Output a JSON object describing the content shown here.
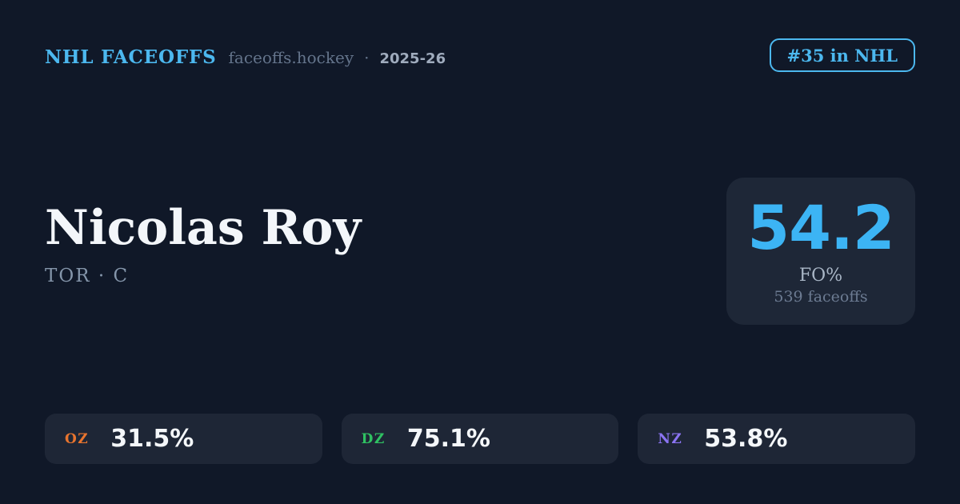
{
  "header": {
    "brand": "NHL FACEOFFS",
    "domain": "faceoffs.hockey",
    "separator": "·",
    "season": "2025-26",
    "rank_badge": "#35 in NHL"
  },
  "player": {
    "name": "Nicolas Roy",
    "team": "TOR",
    "position": "C",
    "team_line": "TOR · C"
  },
  "faceoff_card": {
    "value": "54.2",
    "label": "FO%",
    "sub": "539 faceoffs"
  },
  "zones": [
    {
      "label": "OZ",
      "value": "31.5%",
      "color": "#e8742e"
    },
    {
      "label": "DZ",
      "value": "75.1%",
      "color": "#2fc162"
    },
    {
      "label": "NZ",
      "value": "53.8%",
      "color": "#8b74f2"
    }
  ],
  "colors": {
    "background": "#101828",
    "surface": "#1e2737",
    "accent_blue": "#4cb8ef",
    "value_blue": "#3cb4f4",
    "name_white": "#f3f6fa",
    "muted_gray": "#64748b",
    "sub_gray": "#8495aa",
    "oz_orange": "#e8742e",
    "dz_green": "#2fc162",
    "nz_purple": "#8b74f2"
  }
}
